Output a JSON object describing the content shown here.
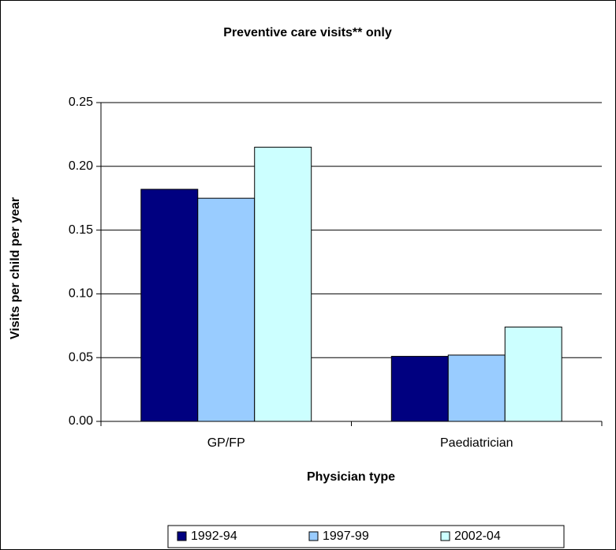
{
  "chart_data": {
    "type": "bar",
    "title": "Preventive care visits** only",
    "x_label": "Physician type",
    "y_label": "Visits per child per year",
    "categories": [
      "GP/FP",
      "Paediatrician"
    ],
    "series": [
      {
        "name": "1992-94",
        "color": "#000080",
        "values": [
          0.182,
          0.051
        ]
      },
      {
        "name": "1997-99",
        "color": "#99ccff",
        "values": [
          0.175,
          0.052
        ]
      },
      {
        "name": "2002-04",
        "color": "#ccffff",
        "values": [
          0.215,
          0.074
        ]
      }
    ],
    "ylim": [
      0,
      0.25
    ],
    "yticks": [
      {
        "value": 0,
        "label": "0.00"
      },
      {
        "value": 0.05,
        "label": "0.05"
      },
      {
        "value": 0.1,
        "label": "0.10"
      },
      {
        "value": 0.15,
        "label": "0.15"
      },
      {
        "value": 0.2,
        "label": "0.20"
      },
      {
        "value": 0.25,
        "label": "0.25"
      }
    ],
    "grid": true,
    "legend": "bottom"
  }
}
